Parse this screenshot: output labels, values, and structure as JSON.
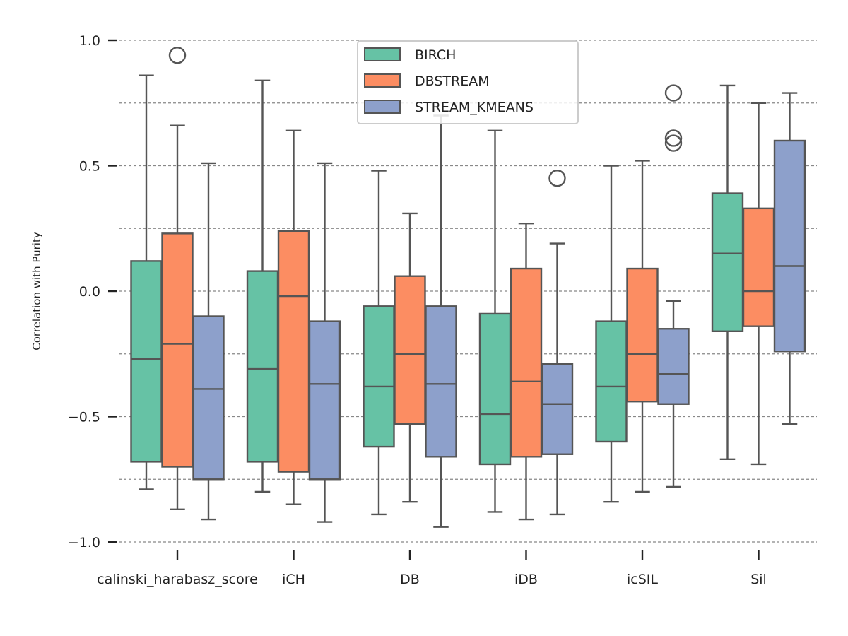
{
  "chart_data": {
    "type": "box",
    "xlabel": "",
    "ylabel": "Correlation with Purity",
    "ylim": [
      -1.0,
      1.0
    ],
    "yticks": [
      {
        "value": 1.0,
        "label": "1.0"
      },
      {
        "value": 0.5,
        "label": "0.5"
      },
      {
        "value": 0.0,
        "label": "0.0"
      },
      {
        "value": -0.5,
        "label": "−0.5"
      },
      {
        "value": -1.0,
        "label": "−1.0"
      }
    ],
    "grid_y": [
      -1.0,
      -0.75,
      -0.5,
      -0.25,
      0.0,
      0.25,
      0.5,
      0.75,
      1.0
    ],
    "grid": true,
    "legend_position": "top-center",
    "categories": [
      "calinski_harabasz_score",
      "iCH",
      "DB",
      "iDB",
      "icSIL",
      "Sil"
    ],
    "series": [
      {
        "name": "BIRCH",
        "color": "#66c2a5",
        "boxes": [
          {
            "whislo": -0.79,
            "q1": -0.68,
            "med": -0.27,
            "q3": 0.12,
            "whishi": 0.86,
            "fliers": []
          },
          {
            "whislo": -0.8,
            "q1": -0.68,
            "med": -0.31,
            "q3": 0.08,
            "whishi": 0.84,
            "fliers": []
          },
          {
            "whislo": -0.89,
            "q1": -0.62,
            "med": -0.38,
            "q3": -0.06,
            "whishi": 0.48,
            "fliers": []
          },
          {
            "whislo": -0.88,
            "q1": -0.69,
            "med": -0.49,
            "q3": -0.09,
            "whishi": 0.64,
            "fliers": []
          },
          {
            "whislo": -0.84,
            "q1": -0.6,
            "med": -0.38,
            "q3": -0.12,
            "whishi": 0.5,
            "fliers": []
          },
          {
            "whislo": -0.67,
            "q1": -0.16,
            "med": 0.15,
            "q3": 0.39,
            "whishi": 0.82,
            "fliers": []
          }
        ]
      },
      {
        "name": "DBSTREAM",
        "color": "#fc8d62",
        "boxes": [
          {
            "whislo": -0.87,
            "q1": -0.7,
            "med": -0.21,
            "q3": 0.23,
            "whishi": 0.66,
            "fliers": [
              0.94
            ]
          },
          {
            "whislo": -0.85,
            "q1": -0.72,
            "med": -0.02,
            "q3": 0.24,
            "whishi": 0.64,
            "fliers": []
          },
          {
            "whislo": -0.84,
            "q1": -0.53,
            "med": -0.25,
            "q3": 0.06,
            "whishi": 0.31,
            "fliers": []
          },
          {
            "whislo": -0.91,
            "q1": -0.66,
            "med": -0.36,
            "q3": 0.09,
            "whishi": 0.27,
            "fliers": []
          },
          {
            "whislo": -0.8,
            "q1": -0.44,
            "med": -0.25,
            "q3": 0.09,
            "whishi": 0.52,
            "fliers": []
          },
          {
            "whislo": -0.69,
            "q1": -0.14,
            "med": 0.0,
            "q3": 0.33,
            "whishi": 0.75,
            "fliers": []
          }
        ]
      },
      {
        "name": "STREAM_KMEANS",
        "color": "#8da0cb",
        "boxes": [
          {
            "whislo": -0.91,
            "q1": -0.75,
            "med": -0.39,
            "q3": -0.1,
            "whishi": 0.51,
            "fliers": []
          },
          {
            "whislo": -0.92,
            "q1": -0.75,
            "med": -0.37,
            "q3": -0.12,
            "whishi": 0.51,
            "fliers": []
          },
          {
            "whislo": -0.94,
            "q1": -0.66,
            "med": -0.37,
            "q3": -0.06,
            "whishi": 0.7,
            "fliers": []
          },
          {
            "whislo": -0.89,
            "q1": -0.65,
            "med": -0.45,
            "q3": -0.29,
            "whishi": 0.19,
            "fliers": [
              0.45
            ]
          },
          {
            "whislo": -0.78,
            "q1": -0.45,
            "med": -0.33,
            "q3": -0.15,
            "whishi": -0.04,
            "fliers": [
              0.79,
              0.61,
              0.59
            ]
          },
          {
            "whislo": -0.53,
            "q1": -0.24,
            "med": 0.1,
            "q3": 0.6,
            "whishi": 0.79,
            "fliers": []
          }
        ]
      }
    ]
  }
}
